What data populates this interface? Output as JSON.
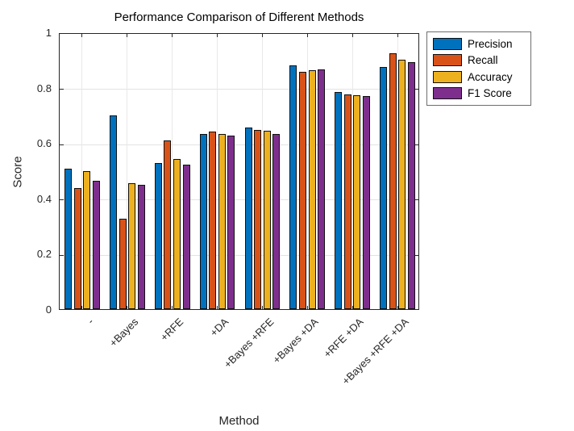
{
  "chart_data": {
    "type": "bar",
    "title": "Performance Comparison of Different Methods",
    "xlabel": "Method",
    "ylabel": "Score",
    "ylim": [
      0,
      1
    ],
    "yticks": [
      0,
      0.2,
      0.4,
      0.6,
      0.8,
      1
    ],
    "ytick_labels": [
      "0",
      "0.2",
      "0.4",
      "0.6",
      "0.8",
      "1"
    ],
    "grid": true,
    "legend_position": "top-right-outside",
    "categories": [
      "-",
      "+Bayes",
      "+RFE",
      "+DA",
      "+Bayes +RFE",
      "+Bayes +DA",
      "+RFE +DA",
      "+Bayes +RFE +DA"
    ],
    "series": [
      {
        "name": "Precision",
        "color": "#0072BD",
        "values": [
          0.508,
          0.7,
          0.527,
          0.634,
          0.657,
          0.88,
          0.783,
          0.876
        ]
      },
      {
        "name": "Recall",
        "color": "#D95319",
        "values": [
          0.436,
          0.328,
          0.608,
          0.642,
          0.648,
          0.858,
          0.776,
          0.924
        ]
      },
      {
        "name": "Accuracy",
        "color": "#EDB120",
        "values": [
          0.5,
          0.455,
          0.541,
          0.634,
          0.645,
          0.863,
          0.772,
          0.901
        ]
      },
      {
        "name": "F1 Score",
        "color": "#7E2F8E",
        "values": [
          0.464,
          0.448,
          0.521,
          0.628,
          0.632,
          0.866,
          0.77,
          0.893
        ]
      }
    ]
  }
}
